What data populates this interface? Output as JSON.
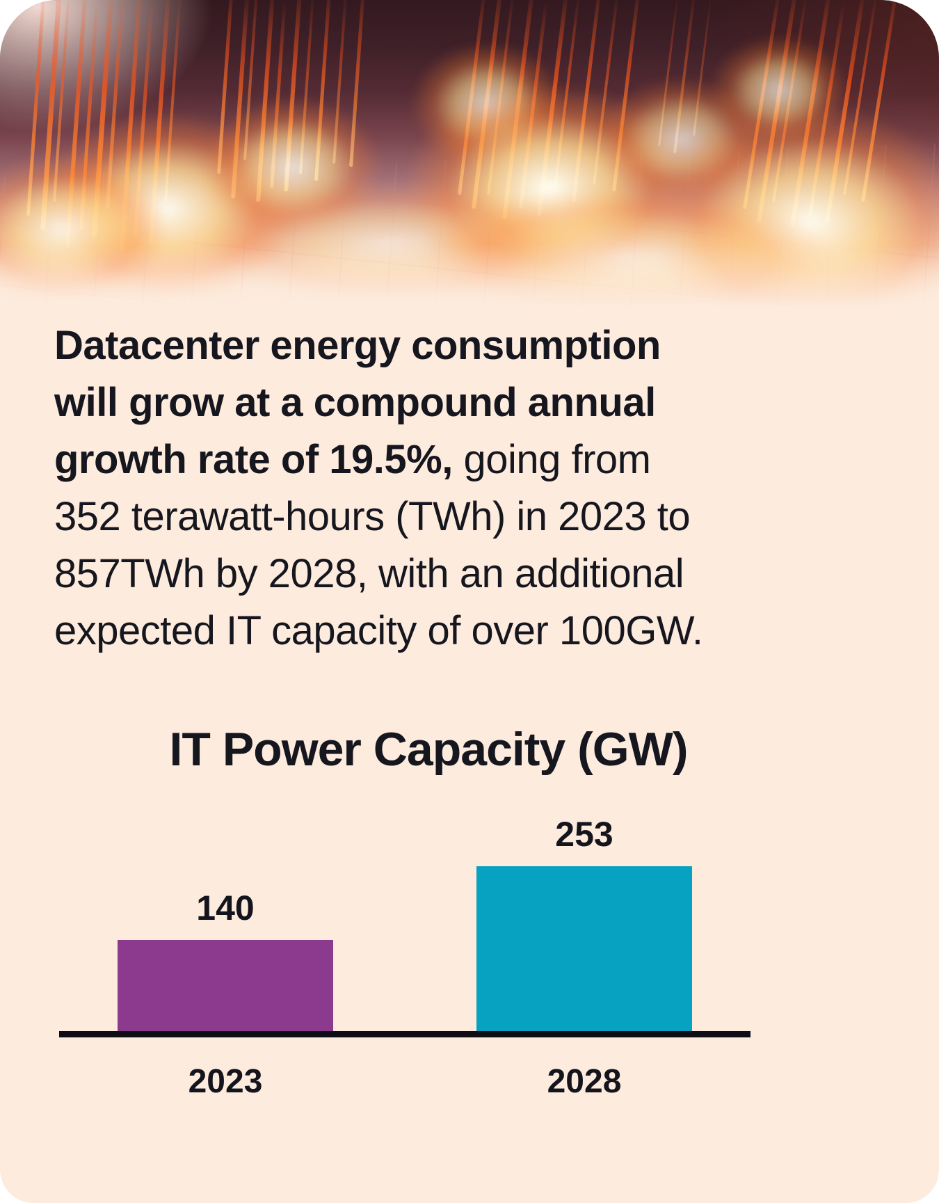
{
  "intro": {
    "lines": [
      {
        "bold": "Datacenter energy consumption",
        "regular": ""
      },
      {
        "bold": "will grow at a compound annual",
        "regular": ""
      },
      {
        "bold": "growth rate of 19.5%,",
        "regular": " going from"
      },
      {
        "bold": "",
        "regular": "352 terawatt-hours (TWh) in 2023 to"
      },
      {
        "bold": "",
        "regular": "857TWh by 2028, with an additional"
      },
      {
        "bold": "",
        "regular": "expected IT capacity of over 100GW."
      }
    ]
  },
  "chart_data": {
    "type": "bar",
    "title": "IT Power Capacity (GW)",
    "categories": [
      "2023",
      "2028"
    ],
    "values": [
      140,
      253
    ],
    "value_labels": [
      "140",
      "253"
    ],
    "ylim": [
      0,
      253
    ],
    "xlabel": "",
    "ylabel": "",
    "grid": false,
    "legend": false,
    "bar_colors": [
      "#8c3a8e",
      "#07a1c1"
    ]
  },
  "colors": {
    "background": "#fdecde",
    "text": "#16161f",
    "axis": "#0d0d15",
    "purple_bar": "#8c3a8e",
    "teal_bar": "#07a1c1"
  }
}
